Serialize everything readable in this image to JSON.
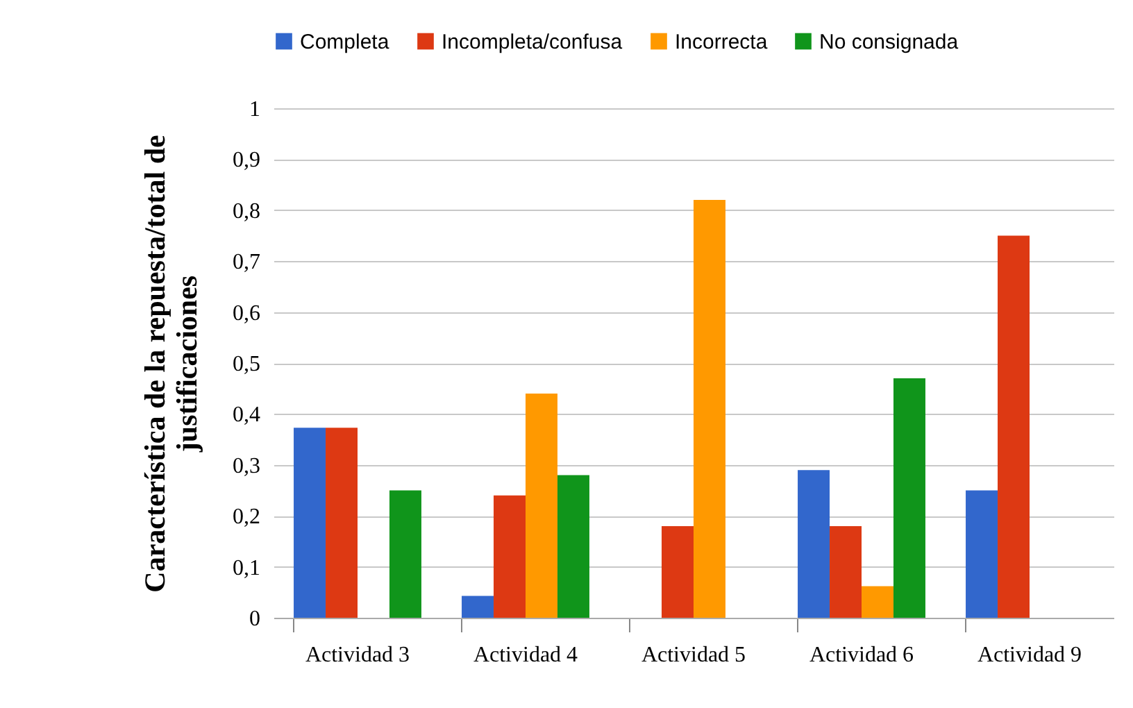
{
  "chart_data": {
    "type": "bar",
    "ylabel": "Característica de la repuesta/total de justificaciones",
    "categories": [
      "Actividad 3",
      "Actividad 4",
      "Actividad 5",
      "Actividad 6",
      "Actividad 9"
    ],
    "series": [
      {
        "name": "Completa",
        "color": "#3267cc",
        "values": [
          0.373,
          0.043,
          null,
          0.29,
          0.25
        ]
      },
      {
        "name": "Incompleta/confusa",
        "color": "#dd3913",
        "values": [
          0.373,
          0.24,
          0.18,
          0.18,
          0.75
        ]
      },
      {
        "name": "Incorrecta",
        "color": "#ff9900",
        "values": [
          null,
          0.44,
          0.82,
          0.062,
          null
        ]
      },
      {
        "name": "No consignada",
        "color": "#10951b",
        "values": [
          0.25,
          0.28,
          null,
          0.47,
          null
        ]
      }
    ],
    "ylim": [
      0,
      1
    ],
    "yticks": [
      0,
      {
        "value": 0.1,
        "label": "0,1"
      },
      {
        "value": 0.2,
        "label": "0,2"
      },
      {
        "value": 0.3,
        "label": "0,3"
      },
      {
        "value": 0.4,
        "label": "0,4"
      },
      {
        "value": 0.5,
        "label": "0,5"
      },
      {
        "value": 0.6,
        "label": "0,6"
      },
      {
        "value": 0.7,
        "label": "0,7"
      },
      {
        "value": 0.8,
        "label": "0,8"
      },
      {
        "value": 0.9,
        "label": "0,9"
      },
      1
    ],
    "grid": "y",
    "legend": "top"
  }
}
